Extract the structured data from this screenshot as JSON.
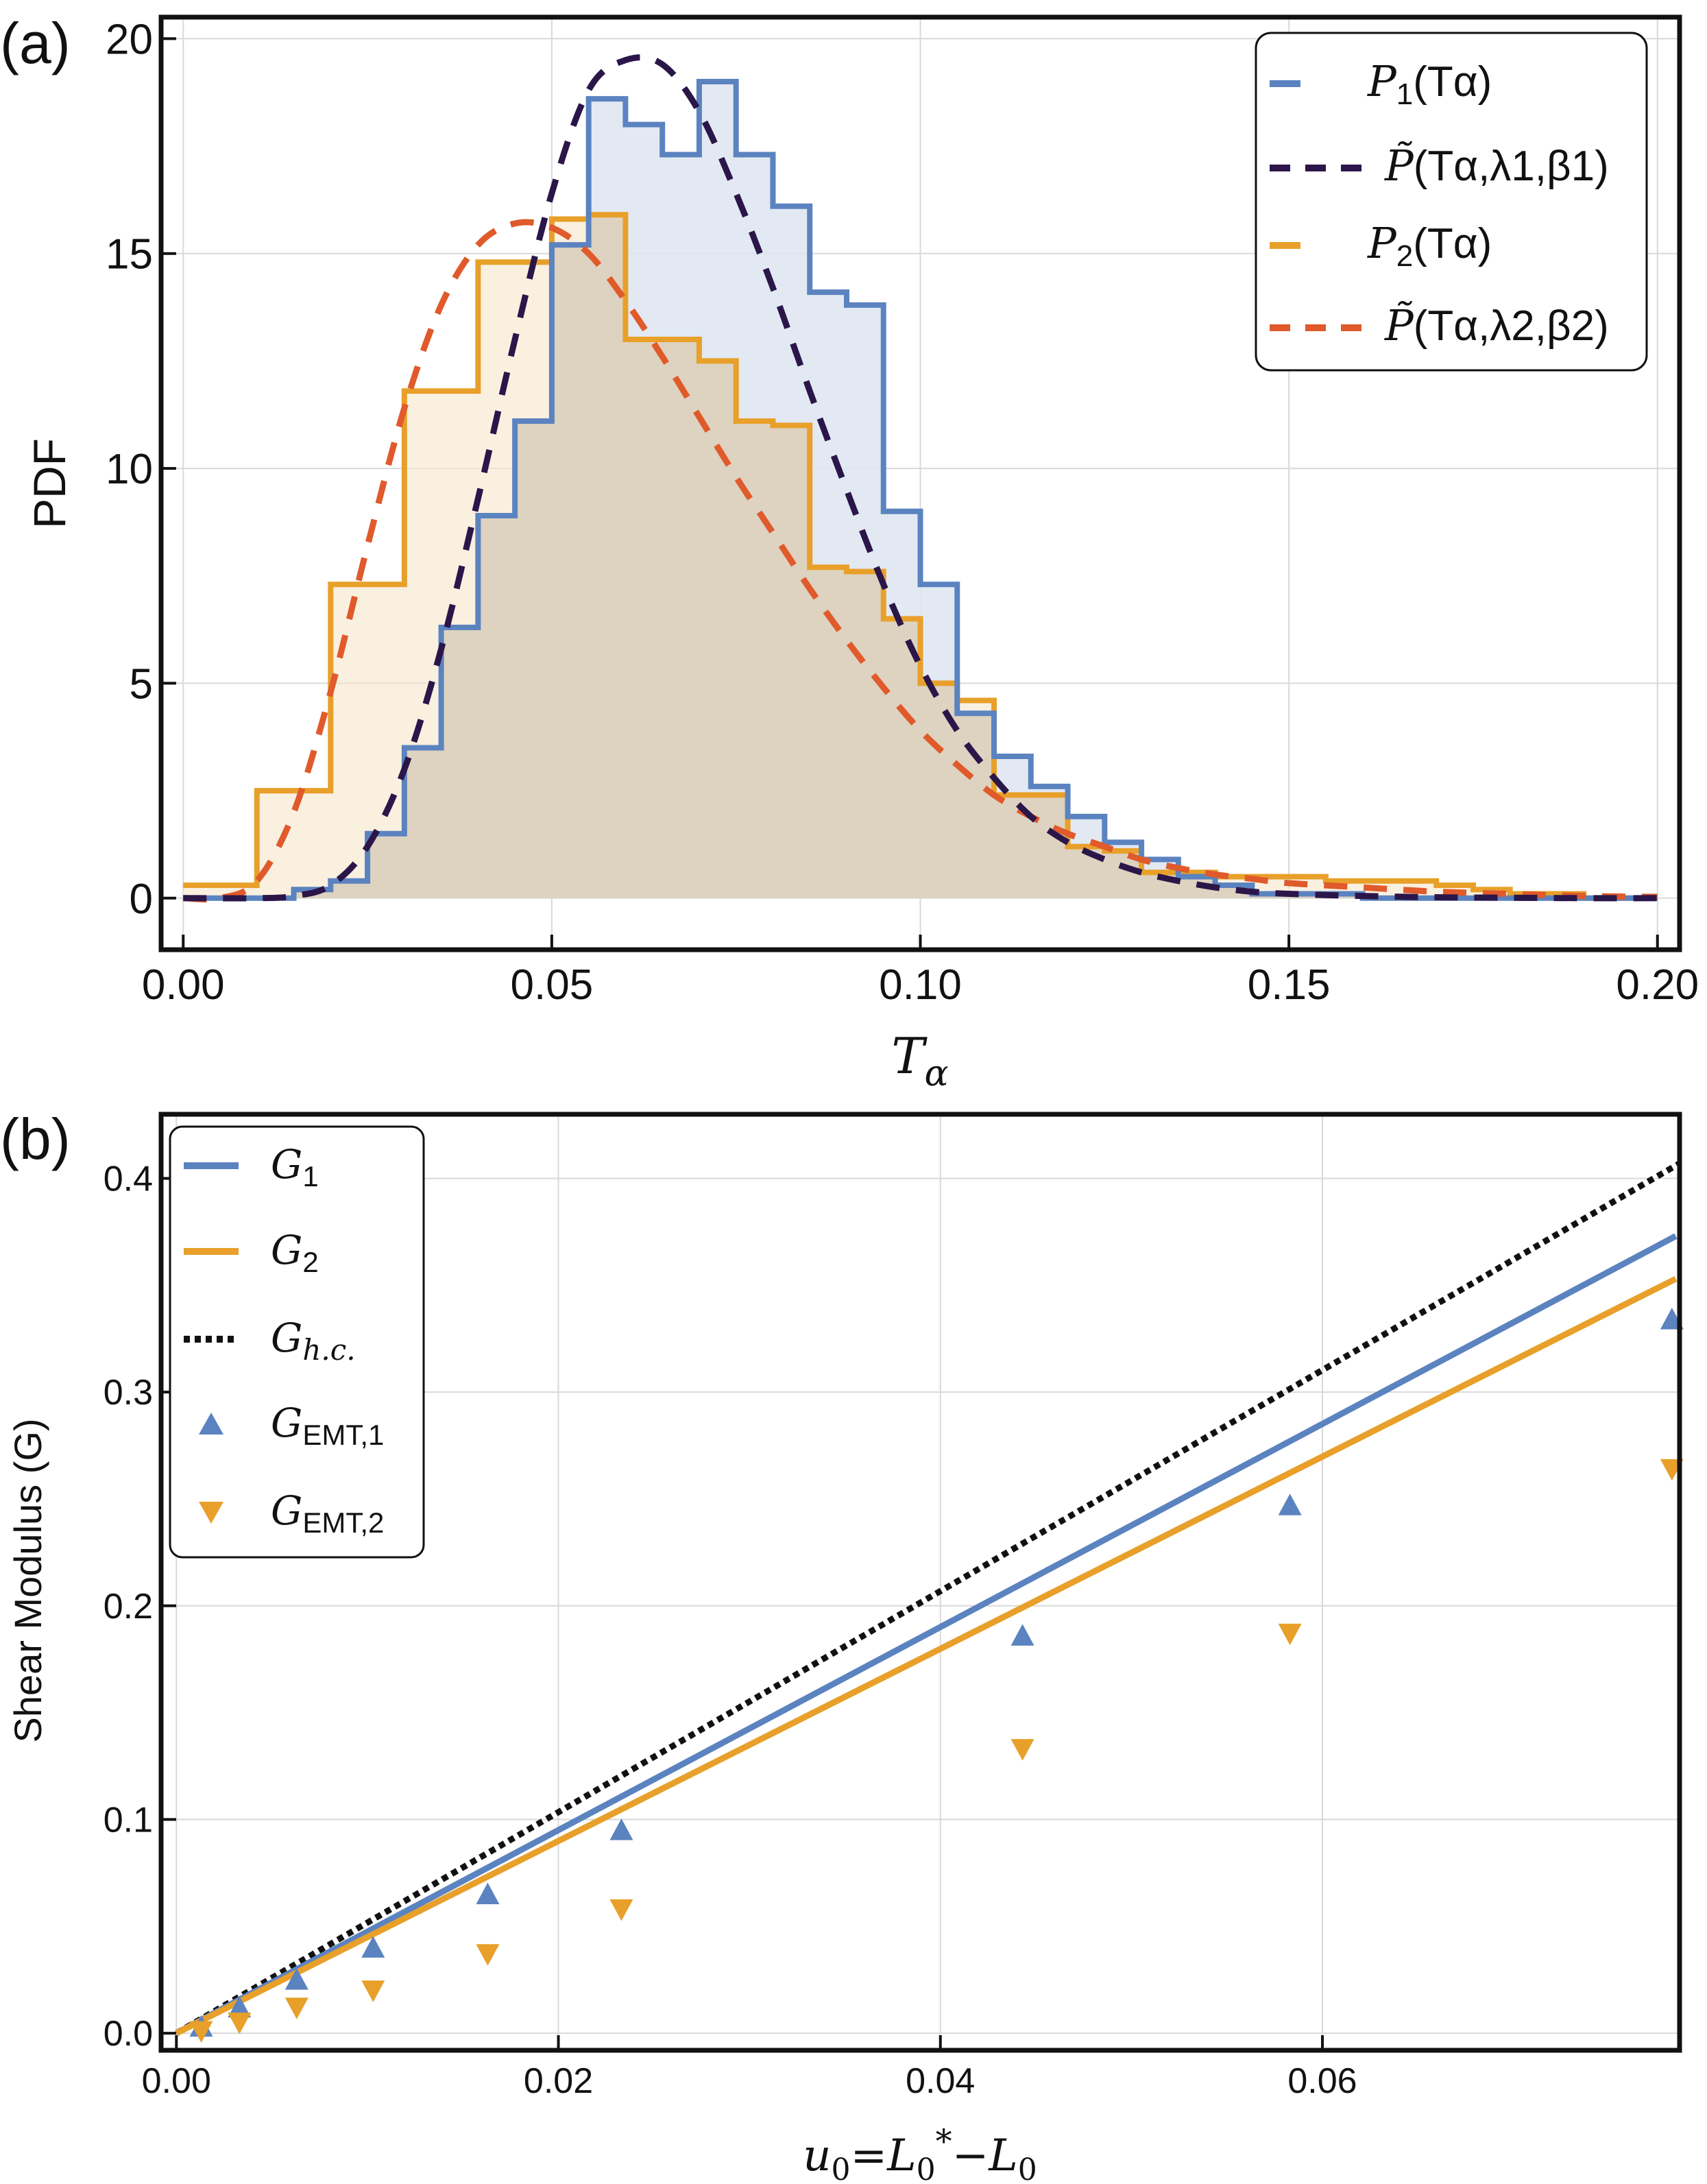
{
  "chart_data": [
    {
      "panel_label": "(a)",
      "type": "line",
      "xlabel": "T",
      "xlabel_sub": "α",
      "ylabel": "PDF",
      "xlim": [
        -0.003,
        0.203
      ],
      "ylim": [
        -1.2,
        20.5
      ],
      "xticks": [
        0.0,
        0.05,
        0.1,
        0.15,
        0.2
      ],
      "xtick_labels": [
        "0.00",
        "0.05",
        "0.10",
        "0.15",
        "0.20"
      ],
      "yticks": [
        0,
        5,
        10,
        15,
        20
      ],
      "ytick_labels": [
        "0",
        "5",
        "10",
        "15",
        "20"
      ],
      "grid": true,
      "legend_position": "top-right",
      "bin_edges": [
        0.0,
        0.005,
        0.01,
        0.015,
        0.02,
        0.025,
        0.03,
        0.035,
        0.04,
        0.045,
        0.05,
        0.055,
        0.06,
        0.065,
        0.07,
        0.075,
        0.08,
        0.085,
        0.09,
        0.095,
        0.1,
        0.105,
        0.11,
        0.115,
        0.12,
        0.125,
        0.13,
        0.135,
        0.14,
        0.145,
        0.15,
        0.155,
        0.16,
        0.165,
        0.17,
        0.175,
        0.18,
        0.185,
        0.19,
        0.195,
        0.2
      ],
      "series": [
        {
          "name": "P1(Tα)",
          "legend_main": "P",
          "legend_sub": "1",
          "legend_rest": "(Tα)",
          "style": "histogram",
          "color": "#5b83c0",
          "fill": "#dde5f1",
          "values": [
            0.0,
            0.0,
            0.0,
            0.2,
            0.4,
            1.5,
            3.5,
            6.3,
            8.9,
            11.1,
            15.2,
            18.6,
            18.0,
            17.3,
            19.0,
            17.3,
            16.1,
            14.1,
            13.8,
            9.0,
            7.3,
            4.3,
            3.3,
            2.6,
            1.9,
            1.3,
            0.9,
            0.5,
            0.3,
            0.1,
            0.1,
            0.1,
            0.0,
            0.0,
            0.0,
            0.0,
            0.0,
            0.0,
            0.0,
            0.0
          ]
        },
        {
          "name": "P2(Tα)",
          "legend_main": "P",
          "legend_sub": "2",
          "legend_rest": "(Tα)",
          "style": "histogram",
          "color": "#e8a02a",
          "fill": "#f7e6cc",
          "values": [
            0.3,
            0.3,
            2.5,
            2.5,
            7.3,
            7.3,
            11.8,
            11.8,
            14.8,
            14.8,
            15.8,
            15.9,
            13.0,
            13.0,
            12.5,
            11.1,
            11.0,
            7.7,
            7.6,
            6.5,
            5.0,
            4.6,
            2.4,
            2.4,
            1.2,
            1.1,
            0.6,
            0.6,
            0.5,
            0.5,
            0.5,
            0.4,
            0.4,
            0.4,
            0.3,
            0.2,
            0.1,
            0.1,
            0.0,
            0.0
          ]
        },
        {
          "name": "P̃(Tα,λ1,β1)",
          "legend_tilde": "P̃",
          "legend_args": "(Tα,λ1,β1)",
          "style": "dashed",
          "color": "#2b1649",
          "x": [
            0.0,
            0.01,
            0.015,
            0.02,
            0.025,
            0.03,
            0.035,
            0.04,
            0.045,
            0.05,
            0.055,
            0.06,
            0.065,
            0.07,
            0.075,
            0.08,
            0.085,
            0.09,
            0.095,
            0.1,
            0.105,
            0.11,
            0.115,
            0.12,
            0.125,
            0.13,
            0.135,
            0.14,
            0.145,
            0.15,
            0.16,
            0.17,
            0.18,
            0.19,
            0.2
          ],
          "y": [
            0.0,
            0.0,
            0.05,
            0.3,
            1.2,
            3.0,
            5.8,
            9.3,
            13.0,
            16.4,
            18.8,
            19.5,
            19.4,
            18.3,
            16.4,
            14.2,
            11.8,
            9.5,
            7.3,
            5.4,
            3.9,
            2.8,
            1.9,
            1.3,
            0.9,
            0.6,
            0.4,
            0.25,
            0.15,
            0.1,
            0.05,
            0.02,
            0.01,
            0.0,
            0.0
          ]
        },
        {
          "name": "P̃(Tα,λ2,β2)",
          "legend_tilde": "P̃",
          "legend_args": "(Tα,λ2,β2)",
          "style": "dashed",
          "color": "#e05a2b",
          "x": [
            0.0,
            0.005,
            0.01,
            0.015,
            0.02,
            0.025,
            0.03,
            0.035,
            0.04,
            0.045,
            0.05,
            0.055,
            0.06,
            0.065,
            0.07,
            0.075,
            0.08,
            0.085,
            0.09,
            0.095,
            0.1,
            0.105,
            0.11,
            0.115,
            0.12,
            0.125,
            0.13,
            0.135,
            0.14,
            0.145,
            0.15,
            0.16,
            0.17,
            0.18,
            0.19,
            0.2
          ],
          "y": [
            0.0,
            0.0,
            0.4,
            2.0,
            4.8,
            8.2,
            11.4,
            13.8,
            15.2,
            15.7,
            15.6,
            15.0,
            13.9,
            12.6,
            11.2,
            9.8,
            8.5,
            7.2,
            6.0,
            4.9,
            3.9,
            3.1,
            2.4,
            1.9,
            1.5,
            1.2,
            0.9,
            0.7,
            0.55,
            0.45,
            0.35,
            0.25,
            0.15,
            0.1,
            0.05,
            0.03
          ]
        }
      ],
      "legend_order": [
        0,
        2,
        1,
        3
      ]
    },
    {
      "panel_label": "(b)",
      "type": "scatter",
      "xlabel": "u0=L0*−L0",
      "xlabel_parts": [
        "u",
        "0",
        "=L",
        "0",
        "*",
        "−L",
        "0"
      ],
      "ylabel": "Shear Modulus (G)",
      "xlim": [
        -0.0008,
        0.0787
      ],
      "ylim": [
        -0.008,
        0.43
      ],
      "xticks": [
        0.0,
        0.02,
        0.04,
        0.06
      ],
      "xtick_labels": [
        "0.00",
        "0.02",
        "0.04",
        "0.06"
      ],
      "yticks": [
        0.0,
        0.1,
        0.2,
        0.3,
        0.4
      ],
      "ytick_labels": [
        "0.0",
        "0.1",
        "0.2",
        "0.3",
        "0.4"
      ],
      "grid": true,
      "legend_position": "top-left",
      "series": [
        {
          "name": "G1",
          "legend_main": "G",
          "legend_sub": "1",
          "style": "line",
          "color": "#5b83c0",
          "x": [
            0.0,
            0.0785
          ],
          "y": [
            0.0,
            0.373
          ]
        },
        {
          "name": "G2",
          "legend_main": "G",
          "legend_sub": "2",
          "style": "line",
          "color": "#e8a02a",
          "x": [
            0.0,
            0.0785
          ],
          "y": [
            0.0,
            0.353
          ]
        },
        {
          "name": "Gh.c.",
          "legend_main": "G",
          "legend_sub": "h.c.",
          "style": "dotted",
          "color": "#111111",
          "x": [
            0.0,
            0.0787
          ],
          "y": [
            0.0,
            0.407
          ]
        },
        {
          "name": "GEMT,1",
          "legend_main": "G",
          "legend_sub": "EMT,1",
          "style": "marker-up",
          "color": "#5b83c0",
          "x": [
            0.0013,
            0.0033,
            0.0063,
            0.0103,
            0.0163,
            0.0233,
            0.0443,
            0.0583,
            0.0783
          ],
          "y": [
            0.003,
            0.012,
            0.025,
            0.04,
            0.065,
            0.095,
            0.186,
            0.247,
            0.334
          ]
        },
        {
          "name": "GEMT,2",
          "legend_main": "G",
          "legend_sub": "EMT,2",
          "style": "marker-down",
          "color": "#e8a02a",
          "x": [
            0.0013,
            0.0033,
            0.0063,
            0.0103,
            0.0163,
            0.0233,
            0.0443,
            0.0583,
            0.0783
          ],
          "y": [
            0.001,
            0.005,
            0.012,
            0.02,
            0.037,
            0.058,
            0.133,
            0.187,
            0.264
          ]
        }
      ]
    }
  ]
}
